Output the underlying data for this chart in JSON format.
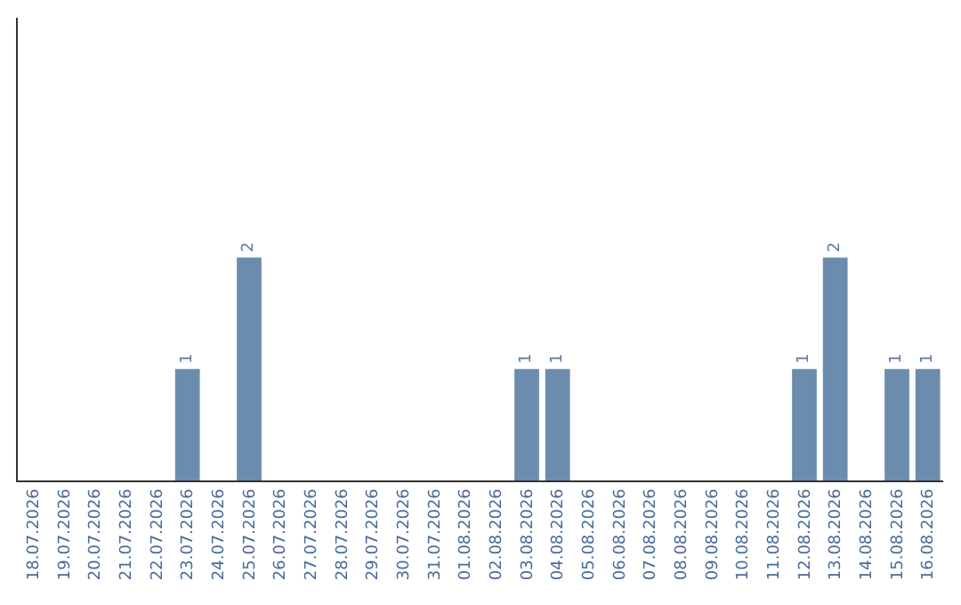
{
  "chart_data": {
    "type": "bar",
    "categories": [
      "18.07.2026",
      "19.07.2026",
      "20.07.2026",
      "21.07.2026",
      "22.07.2026",
      "23.07.2026",
      "24.07.2026",
      "25.07.2026",
      "26.07.2026",
      "27.07.2026",
      "28.07.2026",
      "29.07.2026",
      "30.07.2026",
      "31.07.2026",
      "01.08.2026",
      "02.08.2026",
      "03.08.2026",
      "04.08.2026",
      "05.08.2026",
      "06.08.2026",
      "07.08.2026",
      "08.08.2026",
      "09.08.2026",
      "10.08.2026",
      "11.08.2026",
      "12.08.2026",
      "13.08.2026",
      "14.08.2026",
      "15.08.2026",
      "16.08.2026"
    ],
    "values": [
      0,
      0,
      0,
      0,
      0,
      1,
      0,
      2,
      0,
      0,
      0,
      0,
      0,
      0,
      0,
      0,
      1,
      1,
      0,
      0,
      0,
      0,
      0,
      0,
      0,
      1,
      2,
      0,
      1,
      1
    ],
    "value_labels": [
      null,
      null,
      null,
      null,
      null,
      "1",
      null,
      "2",
      null,
      null,
      null,
      null,
      null,
      null,
      null,
      null,
      "1",
      "1",
      null,
      null,
      null,
      null,
      null,
      null,
      null,
      "1",
      "2",
      null,
      "1",
      "1"
    ],
    "color": "#6b8cad",
    "ylim": [
      0,
      4.15
    ],
    "legend": false
  }
}
